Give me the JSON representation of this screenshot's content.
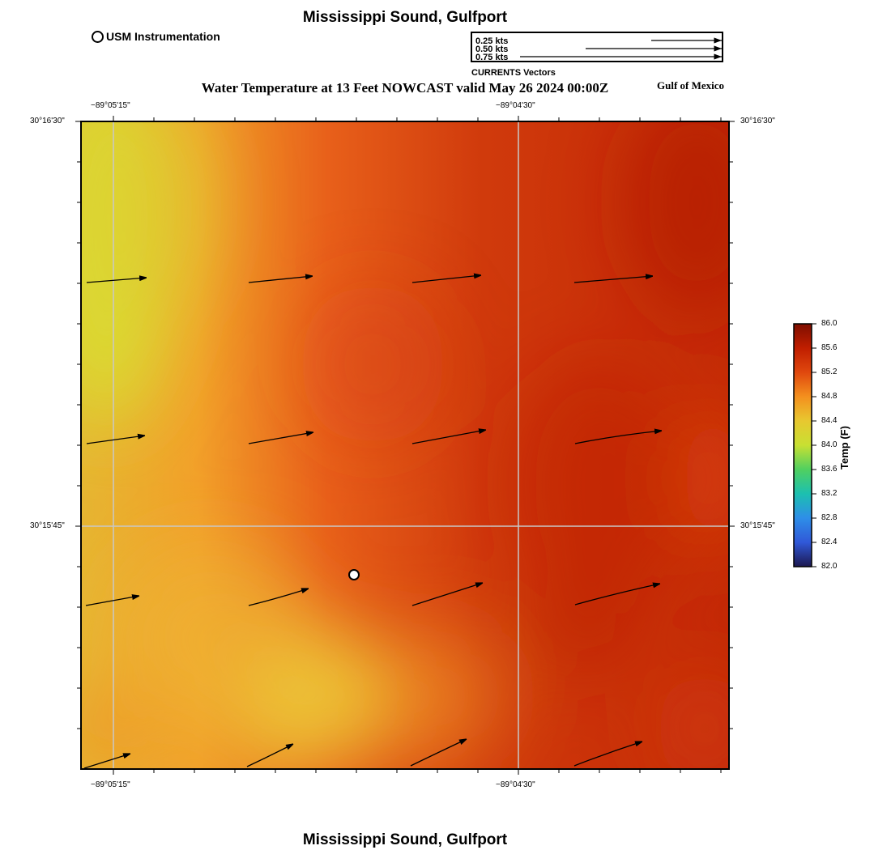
{
  "header": {
    "title": "Mississippi Sound, Gulfport",
    "map_title": "Water Temperature at 13 Feet NOWCAST valid May 26 2024 00:00Z",
    "region": "Gulf of Mexico",
    "footer_title": "Mississippi Sound, Gulfport"
  },
  "legend": {
    "station_label": "USM Instrumentation",
    "vectors_title": "CURRENTS Vectors",
    "vector_scale": [
      {
        "label": "0.25 kts",
        "speed_kts": 0.25
      },
      {
        "label": "0.50 kts",
        "speed_kts": 0.5
      },
      {
        "label": "0.75 kts",
        "speed_kts": 0.75
      }
    ]
  },
  "map": {
    "x_ticks": [
      "−89°05'15\"",
      "−89°04'30\""
    ],
    "y_ticks": [
      "30°16'30\"",
      "30°15'45\""
    ],
    "station": "USM Instrumentation"
  },
  "colorbar": {
    "title": "Temp (F)",
    "min": 82.0,
    "max": 86.0,
    "labels": [
      "86.0",
      "85.6",
      "85.2",
      "84.8",
      "84.4",
      "84.0",
      "83.6",
      "83.2",
      "82.8",
      "82.4",
      "82.0"
    ],
    "colors": [
      "#8c1200",
      "#c12000",
      "#e04a10",
      "#f6921c",
      "#e8c830",
      "#c8e032",
      "#40d070",
      "#22c0b0",
      "#2f8ee8",
      "#3355d8",
      "#1e1a5a"
    ]
  }
}
